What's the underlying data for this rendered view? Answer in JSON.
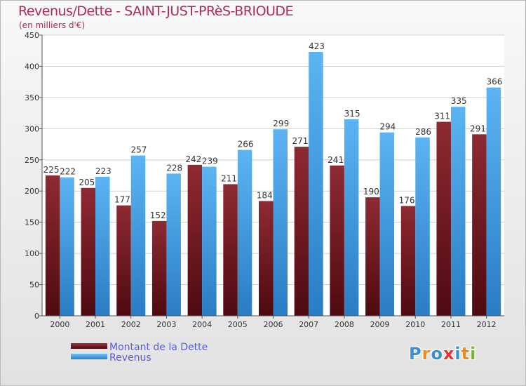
{
  "title": "Revenus/Dette - SAINT-JUST-PRèS-BRIOUDE",
  "subtitle": "(en milliers d'€)",
  "logo": {
    "text": "Proxiti",
    "letters": [
      {
        "ch": "P",
        "color": "#3a8fd8"
      },
      {
        "ch": "r",
        "color": "#f08a1c"
      },
      {
        "ch": "o",
        "color": "#3a8fd8"
      },
      {
        "ch": "x",
        "color": "#e83030"
      },
      {
        "ch": "i",
        "color": "#3a8fd8"
      },
      {
        "ch": "t",
        "color": "#f08a1c"
      },
      {
        "ch": "i",
        "color": "#7ab82e"
      }
    ]
  },
  "chart_data": {
    "type": "bar",
    "categories": [
      "2000",
      "2001",
      "2002",
      "2003",
      "2004",
      "2005",
      "2006",
      "2007",
      "2008",
      "2009",
      "2010",
      "2011",
      "2012"
    ],
    "series": [
      {
        "name": "Montant de la Dette",
        "color": "#7a1c22",
        "values": [
          225,
          205,
          177,
          152,
          242,
          211,
          184,
          271,
          241,
          190,
          176,
          311,
          291
        ]
      },
      {
        "name": "Revenus",
        "color": "#3ea0e8",
        "values": [
          222,
          223,
          257,
          228,
          239,
          266,
          299,
          423,
          315,
          294,
          286,
          335,
          366
        ]
      }
    ],
    "ylim": [
      0,
      450
    ],
    "yticks": [
      0,
      50,
      100,
      150,
      200,
      250,
      300,
      350,
      400,
      450
    ],
    "grid": true,
    "legend_position": "bottom-left",
    "title": "Revenus/Dette - SAINT-JUST-PRèS-BRIOUDE",
    "ylabel": "(en milliers d'€)",
    "xlabel": ""
  }
}
